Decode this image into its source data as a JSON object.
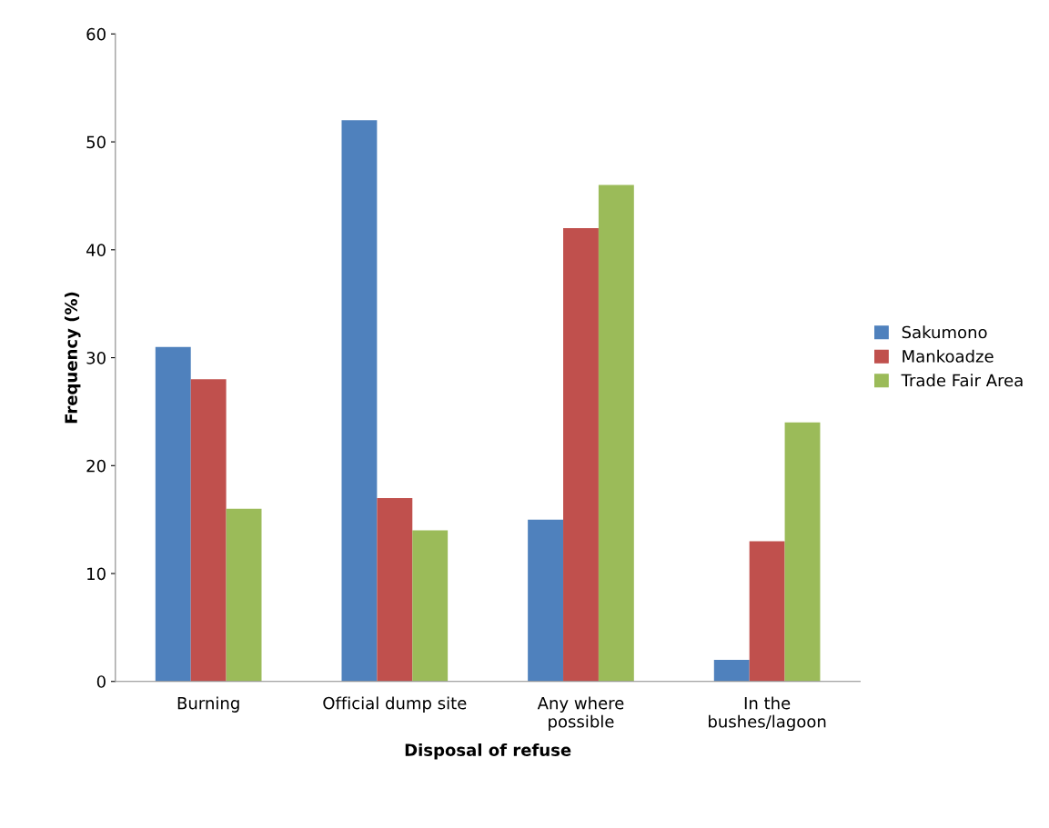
{
  "chart_data": {
    "type": "bar",
    "xlabel": "Disposal of refuse",
    "ylabel": "Frequency (%)",
    "categories": [
      "Burning",
      "Official dump site",
      "Any where\npossible",
      "In the\nbushes/lagoon"
    ],
    "series": [
      {
        "name": "Sakumono",
        "color": "#4f81bd",
        "values": [
          31,
          52,
          15,
          2
        ]
      },
      {
        "name": "Mankoadze",
        "color": "#c0504d",
        "values": [
          28,
          17,
          42,
          13
        ]
      },
      {
        "name": "Trade Fair Area",
        "color": "#9bbb59",
        "values": [
          16,
          14,
          46,
          24
        ]
      }
    ],
    "ylim": [
      0,
      60
    ],
    "yticks": [
      0,
      10,
      20,
      30,
      40,
      50,
      60
    ],
    "grid": false,
    "legend": "right"
  }
}
